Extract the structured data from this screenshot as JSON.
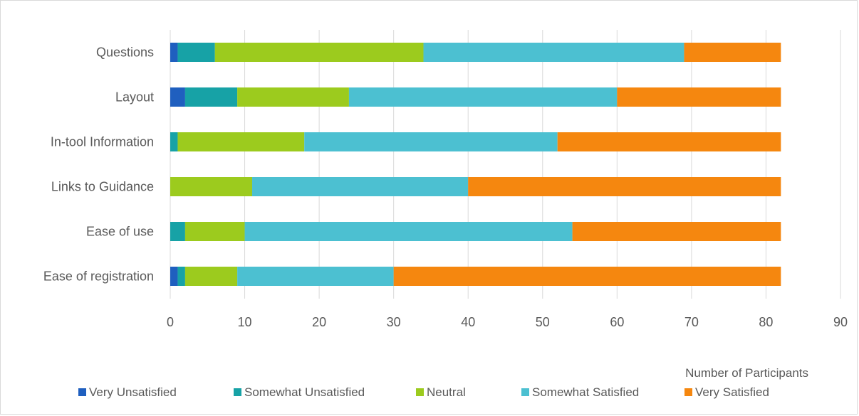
{
  "chart_data": {
    "type": "bar",
    "orientation": "horizontal",
    "stacked": true,
    "categories": [
      "Questions",
      "Layout",
      "In-tool Information",
      "Links to Guidance",
      "Ease of use",
      "Ease of registration"
    ],
    "series": [
      {
        "name": "Very Unsatisfied",
        "color": "#1f5fbf",
        "values": [
          1,
          2,
          0,
          0,
          0,
          1
        ]
      },
      {
        "name": "Somewhat Unsatisfied",
        "color": "#17a2a6",
        "values": [
          5,
          7,
          1,
          0,
          2,
          1
        ]
      },
      {
        "name": "Neutral",
        "color": "#9ccb1e",
        "values": [
          28,
          15,
          17,
          11,
          8,
          7
        ]
      },
      {
        "name": "Somewhat Satisfied",
        "color": "#4cc0d1",
        "values": [
          35,
          36,
          34,
          29,
          44,
          21
        ]
      },
      {
        "name": "Very Satisfied",
        "color": "#f5870f",
        "values": [
          13,
          22,
          30,
          42,
          28,
          52
        ]
      }
    ],
    "xlim": [
      0,
      90
    ],
    "xticks": [
      "0",
      "10",
      "20",
      "30",
      "40",
      "50",
      "60",
      "70",
      "80",
      "90"
    ],
    "xlabel": "Number of Participants",
    "ylabel": "",
    "title": "",
    "grid": true,
    "legend_position": "bottom"
  }
}
